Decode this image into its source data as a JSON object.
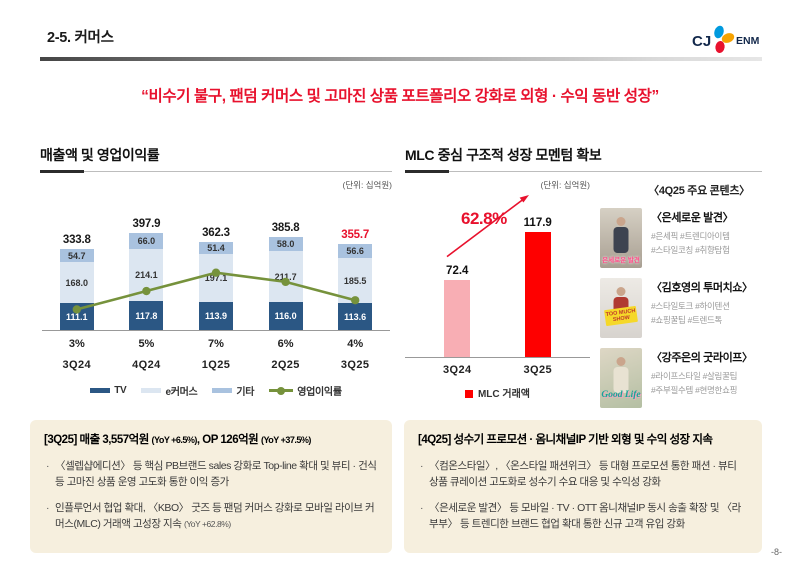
{
  "colors": {
    "accent_red": "#E8112D",
    "green": "#76923C",
    "cream": "#F6EFDE",
    "navy": "#12284B"
  },
  "header": {
    "title": "2-5. 커머스",
    "logo_cj": "CJ",
    "logo_enm": "ENM"
  },
  "headline": "“비수기 불구, 팬덤 커머스 및 고마진 상품 포트폴리오 강화로 외형 · 수익 동반 성장”",
  "left_section": {
    "title": "매출액 및 영업이익률",
    "unit": "(단위: 십억원)"
  },
  "right_section": {
    "title": "MLC 중심 구조적 성장 모멘텀 확보",
    "unit": "(단위: 십억원)"
  },
  "chart_data": [
    {
      "type": "bar",
      "subtype": "stacked-column-with-line",
      "title": "매출액 및 영업이익률",
      "unit": "십억원",
      "categories": [
        "3Q24",
        "4Q24",
        "1Q25",
        "2Q25",
        "3Q25"
      ],
      "series": [
        {
          "name": "TV",
          "color": "#2B5784",
          "values": [
            111.1,
            117.8,
            113.9,
            116.0,
            113.6
          ],
          "labels": [
            "111.1",
            "117.8",
            "113.9",
            "116.0",
            "113.6"
          ]
        },
        {
          "name": "e커머스",
          "color": "#DCE6F1",
          "values": [
            168.0,
            214.1,
            197.1,
            211.7,
            185.5
          ],
          "labels": [
            "168.0",
            "214.1",
            "197.1",
            "211.7",
            "185.5"
          ]
        },
        {
          "name": "기타",
          "color": "#A9C2DF",
          "values": [
            54.7,
            66.0,
            51.4,
            58.0,
            56.6
          ],
          "labels": [
            "54.7",
            "66.0",
            "51.4",
            "58.0",
            "56.6"
          ]
        }
      ],
      "totals": {
        "values": [
          333.8,
          397.9,
          362.3,
          385.8,
          355.7
        ],
        "labels": [
          "333.8",
          "397.9",
          "362.3",
          "385.8",
          "355.7"
        ],
        "highlight_index": 4,
        "highlight_color": "#E8112D"
      },
      "line": {
        "name": "영업이익률",
        "color": "#76923C",
        "values_pct": [
          3,
          5,
          7,
          6,
          4
        ],
        "labels": [
          "3%",
          "5%",
          "7%",
          "6%",
          "4%"
        ]
      },
      "legend": [
        "TV",
        "e커머스",
        "기타",
        "영업이익률"
      ],
      "legend_position": "bottom"
    },
    {
      "type": "bar",
      "title": "MLC 거래액",
      "unit": "십억원",
      "categories": [
        "3Q24",
        "3Q25"
      ],
      "values": [
        72.4,
        117.9
      ],
      "labels": [
        "72.4",
        "117.9"
      ],
      "colors": [
        "#F8AEB4",
        "#FE0000"
      ],
      "growth_label": "62.8%",
      "legend": [
        "MLC 거래액"
      ],
      "legend_color": "#FE0000",
      "legend_position": "bottom"
    }
  ],
  "contents_panel": {
    "heading": "〈4Q25 주요 콘텐츠〉",
    "items": [
      {
        "title": "〈은세로운 발견〉",
        "tags": [
          "#은세픽 #트렌디아이템",
          "#스타일코칭  #취향탐험"
        ],
        "thumb_text": "은세로운 발견"
      },
      {
        "title": "〈김호영의 투머치쇼〉",
        "tags": [
          "#스타일토크 #하이텐션",
          "#쇼핑꿀팁 #트렌드톡"
        ],
        "thumb_text": "TOO MUCH SHOW"
      },
      {
        "title": "〈강주은의 굿라이프〉",
        "tags": [
          "#라이프스타일 #살림꿀팁",
          "#주부필수템 #현명한쇼핑"
        ],
        "thumb_text": "Good Life"
      }
    ]
  },
  "boxes": [
    {
      "title_segments": [
        {
          "text": "[3Q25]  매출 3,557억원 ",
          "small": false
        },
        {
          "text": "(YoY +6.5%)",
          "small": true
        },
        {
          "text": ", OP 126억원 ",
          "small": false
        },
        {
          "text": "(YoY +37.5%)",
          "small": true
        }
      ],
      "bullets": [
        [
          {
            "text": "〈셀렙샵에디션〉 등 핵심 PB브랜드 sales 강화로 Top-line 확대 및 뷰티 · 건식 등 고마진 상품 운영 고도화 통한 이익 증가",
            "small": false
          }
        ],
        [
          {
            "text": "인플루언서 협업 확대, 〈KBO〉 굿즈 등 팬덤 커머스 강화로 모바일 라이브 커머스(MLC) 거래액 고성장 지속 ",
            "small": false
          },
          {
            "text": "(YoY +62.8%)",
            "small": true
          }
        ]
      ]
    },
    {
      "title_segments": [
        {
          "text": "[4Q25] 성수기 프로모션 · 옴니채널IP 기반 외형 및 수익 성장 지속",
          "small": false
        }
      ],
      "bullets": [
        [
          {
            "text": "〈컴온스타일〉, 〈온스타일 패션위크〉 등 대형 프로모션 통한 패션 · 뷰티 상품 큐레이션 고도화로 성수기 수요 대응 및 수익성 강화",
            "small": false
          }
        ],
        [
          {
            "text": "〈은세로운 발견〉 등 모바일 · TV · OTT 옴니채널IP 동시 송출 확장 및 〈라부부〉 등 트렌디한 브랜드 협업 확대 통한 신규 고객 유입 강화",
            "small": false
          }
        ]
      ]
    }
  ],
  "page_number": "-8-"
}
